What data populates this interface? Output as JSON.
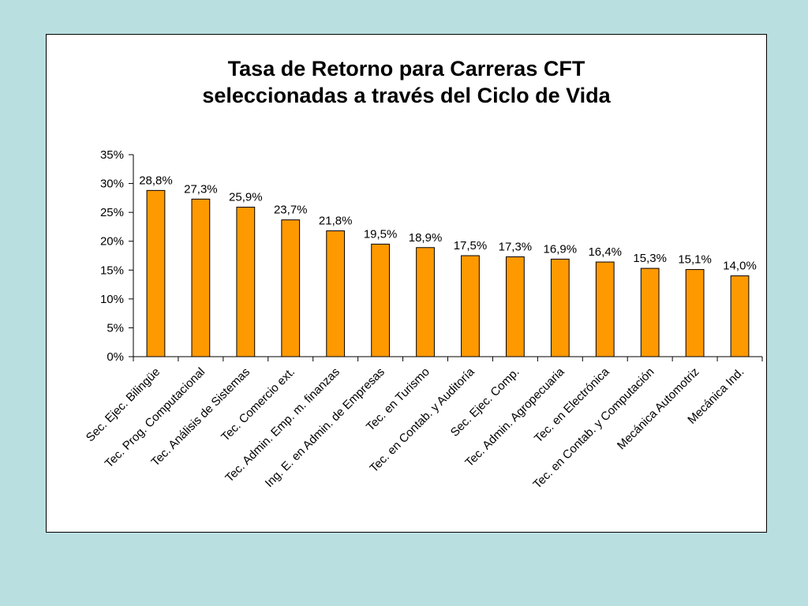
{
  "chart_data": {
    "type": "bar",
    "title": [
      "Tasa de Retorno para Carreras CFT",
      "seleccionadas a través del Ciclo de Vida"
    ],
    "xlabel": "",
    "ylabel": "",
    "ylim": [
      0,
      35
    ],
    "yticks": [
      0,
      5,
      10,
      15,
      20,
      25,
      30,
      35
    ],
    "ytick_labels": [
      "0%",
      "5%",
      "10%",
      "15%",
      "20%",
      "25%",
      "30%",
      "35%"
    ],
    "grid": false,
    "legend": "none",
    "bar_color": "#ff9900",
    "categories": [
      "Sec. Ejec. Bilingüe",
      "Tec. Prog. Computacional",
      "Tec. Análisis de Sistemas",
      "Tec. Comercio ext.",
      "Tec. Admin. Emp. m. finanzas",
      "Ing. E. en Admin. de Empresas",
      "Tec. en Turismo",
      "Tec. en Contab. y Auditoría",
      "Sec. Ejec. Comp.",
      "Tec. Admin. Agropecuaria",
      "Tec. en Electrónica",
      "Tec. en Contab. y Computación",
      "Mecánica Automotriz",
      "Mecánica Ind."
    ],
    "values": [
      28.8,
      27.3,
      25.9,
      23.7,
      21.8,
      19.5,
      18.9,
      17.5,
      17.3,
      16.9,
      16.4,
      15.3,
      15.1,
      14.0
    ],
    "data_labels": [
      "28,8%",
      "27,3%",
      "25,9%",
      "23,7%",
      "21,8%",
      "19,5%",
      "18,9%",
      "17,5%",
      "17,3%",
      "16,9%",
      "16,4%",
      "15,3%",
      "15,1%",
      "14,0%"
    ]
  }
}
